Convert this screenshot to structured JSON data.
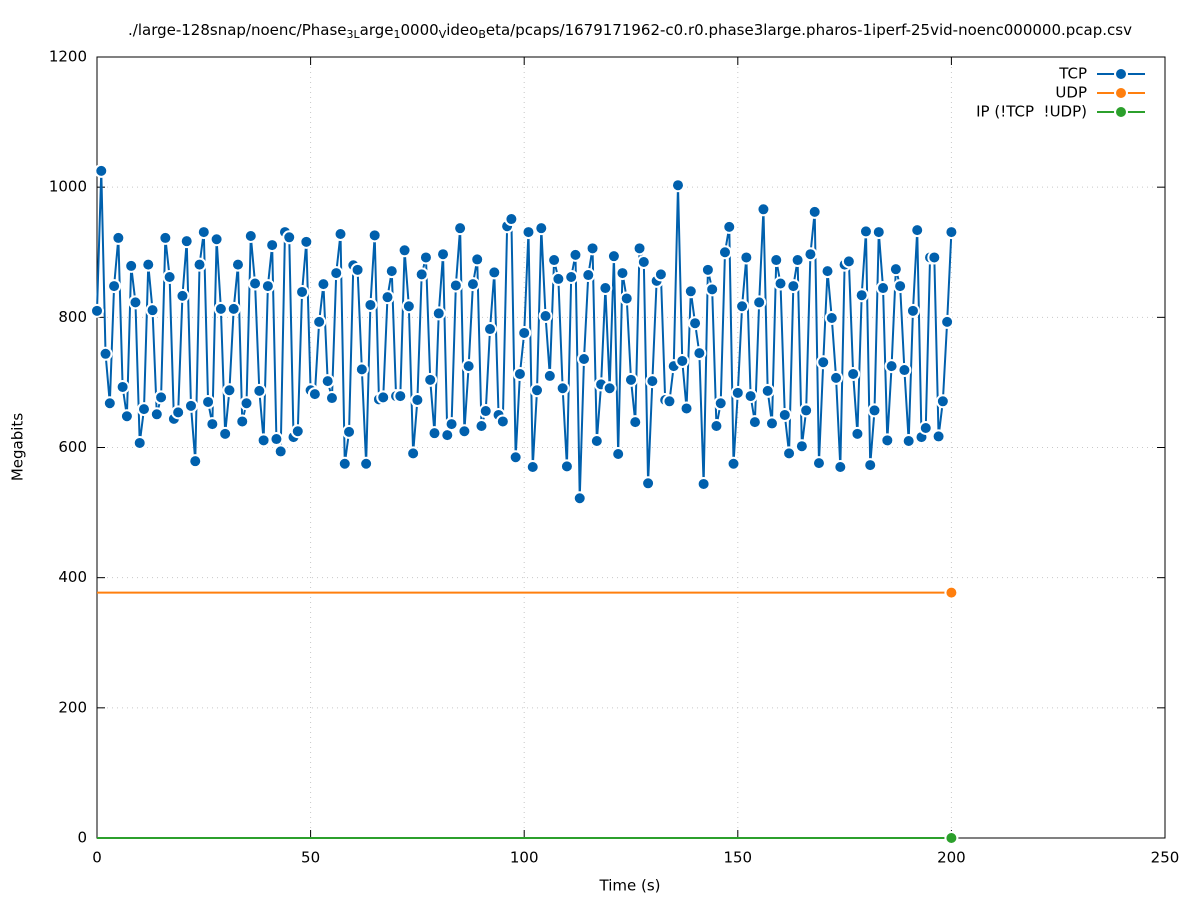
{
  "chart_data": {
    "type": "line",
    "title": [
      "./large-128snap/noenc/Phase",
      "3L",
      "arge",
      "1",
      "0000",
      "V",
      "ideo",
      "B",
      "eta/pcaps/1679171962-c0.r0.phase3large.pharos-1iperf-25vid-noenc000000.pcap.csv"
    ],
    "x_label": "Time (s)",
    "y_label": "Megabits",
    "xlim": [
      0,
      250
    ],
    "xticks": [
      0,
      50,
      100,
      150,
      200,
      250
    ],
    "ylim": [
      0,
      1200
    ],
    "yticks": [
      0,
      200,
      400,
      600,
      800,
      1000,
      1200
    ],
    "grid": true,
    "legend": "top-right",
    "x": [
      0,
      1,
      2,
      3,
      4,
      5,
      6,
      7,
      8,
      9,
      10,
      11,
      12,
      13,
      14,
      15,
      16,
      17,
      18,
      19,
      20,
      21,
      22,
      23,
      24,
      25,
      26,
      27,
      28,
      29,
      30,
      31,
      32,
      33,
      34,
      35,
      36,
      37,
      38,
      39,
      40,
      41,
      42,
      43,
      44,
      45,
      46,
      47,
      48,
      49,
      50,
      51,
      52,
      53,
      54,
      55,
      56,
      57,
      58,
      59,
      60,
      61,
      62,
      63,
      64,
      65,
      66,
      67,
      68,
      69,
      70,
      71,
      72,
      73,
      74,
      75,
      76,
      77,
      78,
      79,
      80,
      81,
      82,
      83,
      84,
      85,
      86,
      87,
      88,
      89,
      90,
      91,
      92,
      93,
      94,
      95,
      96,
      97,
      98,
      99,
      100,
      101,
      102,
      103,
      104,
      105,
      106,
      107,
      108,
      109,
      110,
      111,
      112,
      113,
      114,
      115,
      116,
      117,
      118,
      119,
      120,
      121,
      122,
      123,
      124,
      125,
      126,
      127,
      128,
      129,
      130,
      131,
      132,
      133,
      134,
      135,
      136,
      137,
      138,
      139,
      140,
      141,
      142,
      143,
      144,
      145,
      146,
      147,
      148,
      149,
      150,
      151,
      152,
      153,
      154,
      155,
      156,
      157,
      158,
      159,
      160,
      161,
      162,
      163,
      164,
      165,
      166,
      167,
      168,
      169,
      170,
      171,
      172,
      173,
      174,
      175,
      176,
      177,
      178,
      179,
      180,
      181,
      182,
      183,
      184,
      185,
      186,
      187,
      188,
      189,
      190,
      191,
      192,
      193,
      194,
      195,
      196,
      197,
      198,
      199,
      200
    ],
    "series": [
      {
        "name": "TCP",
        "color": "#0060ad",
        "values": [
          810,
          1025,
          744,
          668,
          848,
          922,
          693,
          648,
          879,
          823,
          607,
          659,
          881,
          811,
          651,
          677,
          922,
          862,
          644,
          654,
          833,
          917,
          664,
          579,
          881,
          931,
          670,
          636,
          920,
          813,
          621,
          688,
          813,
          881,
          640,
          668,
          925,
          852,
          687,
          611,
          848,
          911,
          613,
          594,
          931,
          923,
          616,
          625,
          839,
          916,
          688,
          682,
          793,
          851,
          702,
          676,
          868,
          928,
          575,
          624,
          880,
          873,
          720,
          575,
          819,
          926,
          674,
          677,
          831,
          871,
          679,
          679,
          903,
          817,
          591,
          673,
          866,
          892,
          704,
          622,
          806,
          897,
          619,
          636,
          849,
          937,
          625,
          725,
          851,
          889,
          633,
          656,
          782,
          869,
          650,
          640,
          940,
          951,
          585,
          713,
          776,
          931,
          570,
          688,
          937,
          802,
          710,
          888,
          859,
          691,
          571,
          862,
          896,
          522,
          736,
          865,
          906,
          610,
          697,
          845,
          691,
          894,
          590,
          868,
          829,
          704,
          639,
          906,
          885,
          545,
          702,
          856,
          866,
          673,
          671,
          725,
          1003,
          733,
          660,
          840,
          791,
          745,
          544,
          873,
          843,
          633,
          668,
          900,
          939,
          575,
          684,
          817,
          892,
          679,
          639,
          823,
          966,
          687,
          637,
          888,
          852,
          650,
          591,
          848,
          888,
          602,
          657,
          897,
          962,
          576,
          731,
          871,
          799,
          707,
          570,
          881,
          886,
          713,
          621,
          834,
          932,
          573,
          657,
          931,
          845,
          611,
          725,
          874,
          848,
          719,
          610,
          810,
          934,
          616,
          630,
          892,
          892,
          617,
          671,
          793,
          931
        ]
      },
      {
        "name": "UDP",
        "color": "#ff7f0e",
        "values": [
          377,
          377,
          377,
          377,
          377,
          377,
          377,
          377,
          377,
          377,
          377,
          377,
          377,
          377,
          377,
          377,
          377,
          377,
          377,
          377,
          377,
          377,
          377,
          377,
          377,
          377,
          377,
          377,
          377,
          377,
          377,
          377,
          377,
          377,
          377,
          377,
          377,
          377,
          377,
          377,
          377,
          377,
          377,
          377,
          377,
          377,
          377,
          377,
          377,
          377,
          377,
          377,
          377,
          377,
          377,
          377,
          377,
          377,
          377,
          377,
          377,
          377,
          377,
          377,
          377,
          377,
          377,
          377,
          377,
          377,
          377,
          377,
          377,
          377,
          377,
          377,
          377,
          377,
          377,
          377,
          377,
          377,
          377,
          377,
          377,
          377,
          377,
          377,
          377,
          377,
          377,
          377,
          377,
          377,
          377,
          377,
          377,
          377,
          377,
          377,
          377,
          377,
          377,
          377,
          377,
          377,
          377,
          377,
          377,
          377,
          377,
          377,
          377,
          377,
          377,
          377,
          377,
          377,
          377,
          377,
          377,
          377,
          377,
          377,
          377,
          377,
          377,
          377,
          377,
          377,
          377,
          377,
          377,
          377,
          377,
          377,
          377,
          377,
          377,
          377,
          377,
          377,
          377,
          377,
          377,
          377,
          377,
          377,
          377,
          377,
          377,
          377,
          377,
          377,
          377,
          377,
          377,
          377,
          377,
          377,
          377,
          377,
          377,
          377,
          377,
          377,
          377,
          377,
          377,
          377,
          377,
          377,
          377,
          377,
          377,
          377,
          377,
          377,
          377,
          377,
          377,
          377,
          377,
          377,
          377,
          377,
          377,
          377,
          377,
          377,
          377,
          377,
          377,
          377,
          377,
          377,
          377,
          377,
          377,
          377,
          377
        ]
      },
      {
        "name": "IP (!TCP  !UDP)",
        "color": "#2ca02c",
        "values": [
          0,
          0,
          0,
          0,
          0,
          0,
          0,
          0,
          0,
          0,
          0,
          0,
          0,
          0,
          0,
          0,
          0,
          0,
          0,
          0,
          0,
          0,
          0,
          0,
          0,
          0,
          0,
          0,
          0,
          0,
          0,
          0,
          0,
          0,
          0,
          0,
          0,
          0,
          0,
          0,
          0,
          0,
          0,
          0,
          0,
          0,
          0,
          0,
          0,
          0,
          0,
          0,
          0,
          0,
          0,
          0,
          0,
          0,
          0,
          0,
          0,
          0,
          0,
          0,
          0,
          0,
          0,
          0,
          0,
          0,
          0,
          0,
          0,
          0,
          0,
          0,
          0,
          0,
          0,
          0,
          0,
          0,
          0,
          0,
          0,
          0,
          0,
          0,
          0,
          0,
          0,
          0,
          0,
          0,
          0,
          0,
          0,
          0,
          0,
          0,
          0,
          0,
          0,
          0,
          0,
          0,
          0,
          0,
          0,
          0,
          0,
          0,
          0,
          0,
          0,
          0,
          0,
          0,
          0,
          0,
          0,
          0,
          0,
          0,
          0,
          0,
          0,
          0,
          0,
          0,
          0,
          0,
          0,
          0,
          0,
          0,
          0,
          0,
          0,
          0,
          0,
          0,
          0,
          0,
          0,
          0,
          0,
          0,
          0,
          0,
          0,
          0,
          0,
          0,
          0,
          0,
          0,
          0,
          0,
          0,
          0,
          0,
          0,
          0,
          0,
          0,
          0,
          0,
          0,
          0,
          0,
          0,
          0,
          0,
          0,
          0,
          0,
          0,
          0,
          0,
          0,
          0,
          0,
          0,
          0,
          0,
          0,
          0,
          0,
          0,
          0,
          0,
          0,
          0,
          0,
          0,
          0,
          0,
          0,
          0,
          0
        ]
      }
    ]
  }
}
